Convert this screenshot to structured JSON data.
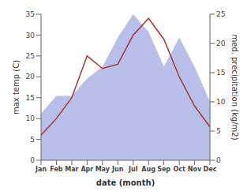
{
  "chart_data": {
    "type": "line",
    "xlabel": "date (month)",
    "ylabel": "max temp (C)",
    "y2label": "med. precipitation (kg/m2)",
    "categories": [
      "Jan",
      "Feb",
      "Mar",
      "Apr",
      "May",
      "Jun",
      "Jul",
      "Aug",
      "Sep",
      "Oct",
      "Nov",
      "Dec"
    ],
    "series": [
      {
        "type": "area",
        "axis": "y2",
        "color": "#b8bfe8",
        "values": [
          8,
          11,
          11,
          14,
          16,
          21,
          25,
          22,
          16,
          21,
          16,
          10
        ]
      },
      {
        "color": "#aa3333",
        "values": [
          6.0,
          10.0,
          15.0,
          25.0,
          22.0,
          23.0,
          30.0,
          34.0,
          29.0,
          20.0,
          13.0,
          8.0
        ]
      }
    ],
    "ylim": [
      0,
      35
    ],
    "yticks": [
      0,
      5,
      10,
      15,
      20,
      25,
      30,
      35
    ],
    "y2lim": [
      0,
      25
    ],
    "y2ticks": [
      0,
      5,
      10,
      15,
      20,
      25
    ],
    "grid": false
  }
}
